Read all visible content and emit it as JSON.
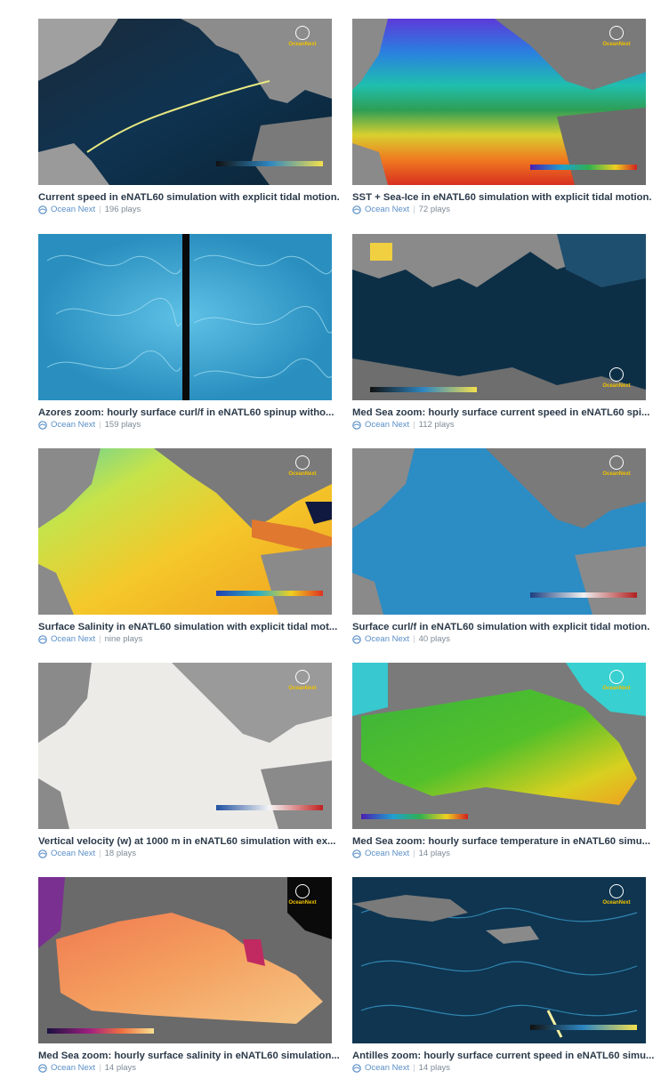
{
  "videos": [
    {
      "title": "Current speed in eNATL60 simulation with explicit tidal motion.",
      "owner": "Ocean Next",
      "plays": "196 plays",
      "theme": "speed-atl"
    },
    {
      "title": "SST + Sea-Ice in eNATL60 simulation with explicit tidal motion.",
      "owner": "Ocean Next",
      "plays": "72 plays",
      "theme": "sst"
    },
    {
      "title": "Azores zoom: hourly surface curl/f in eNATL60 spinup witho...",
      "owner": "Ocean Next",
      "plays": "159 plays",
      "theme": "azores"
    },
    {
      "title": "Med Sea zoom: hourly surface current speed in eNATL60 spi...",
      "owner": "Ocean Next",
      "plays": "112 plays",
      "theme": "med-speed"
    },
    {
      "title": "Surface Salinity in eNATL60 simulation with explicit tidal mot...",
      "owner": "Ocean Next",
      "plays": "nine plays",
      "theme": "salinity"
    },
    {
      "title": "Surface curl/f in eNATL60 simulation with explicit tidal motion.",
      "owner": "Ocean Next",
      "plays": "40 plays",
      "theme": "curl"
    },
    {
      "title": "Vertical velocity (w) at 1000 m in eNATL60 simulation with ex...",
      "owner": "Ocean Next",
      "plays": "18 plays",
      "theme": "vertical"
    },
    {
      "title": "Med Sea zoom: hourly surface temperature in eNATL60 simu...",
      "owner": "Ocean Next",
      "plays": "14 plays",
      "theme": "med-temp"
    },
    {
      "title": "Med Sea zoom: hourly surface salinity in eNATL60 simulation...",
      "owner": "Ocean Next",
      "plays": "14 plays",
      "theme": "med-sal"
    },
    {
      "title": "Antilles zoom: hourly surface current speed in eNATL60 simu...",
      "owner": "Ocean Next",
      "plays": "14 plays",
      "theme": "antilles"
    }
  ],
  "colors": {
    "title": "#2b3a4a",
    "meta": "#7d8a96",
    "owner_link": "#5a8fc7",
    "logo_text": "#f2c200"
  },
  "logo_text": "OceanNext",
  "icons": {
    "owner": "ocean-next-avatar-icon",
    "logo": "ocean-next-logo-icon"
  }
}
